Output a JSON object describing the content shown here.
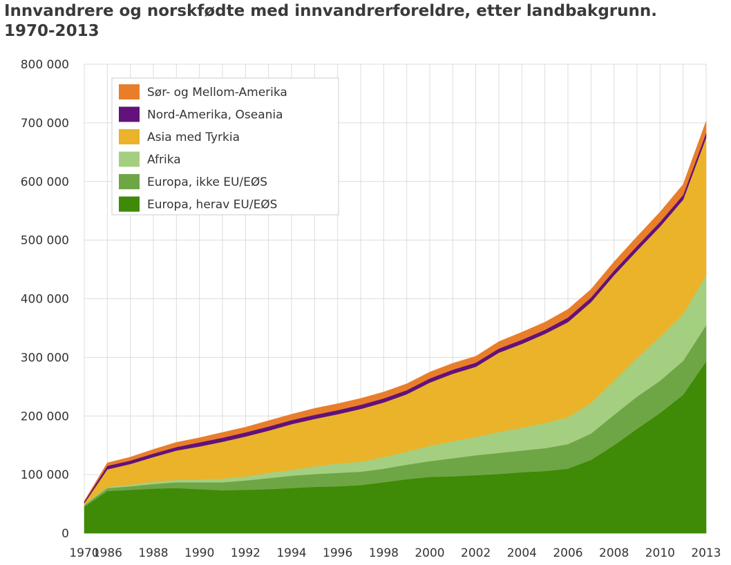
{
  "chart_data": {
    "type": "area",
    "stacked": true,
    "title_line1": "Innvandrere og norskfødte med innvandrerforeldre, etter landbakgrunn.",
    "title_line2": "1970-2013",
    "xlabel": "",
    "ylabel": "",
    "ylim": [
      0,
      800000
    ],
    "yticks": [
      0,
      100000,
      200000,
      300000,
      400000,
      500000,
      600000,
      700000,
      800000
    ],
    "ytick_labels": [
      "0",
      "100 000",
      "200 000",
      "300 000",
      "400 000",
      "500 000",
      "600 000",
      "700 000",
      "800 000"
    ],
    "x": [
      "1970",
      "1986",
      "1987",
      "1988",
      "1989",
      "1990",
      "1991",
      "1992",
      "1993",
      "1994",
      "1995",
      "1996",
      "1997",
      "1998",
      "1999",
      "2000",
      "2001",
      "2002",
      "2003",
      "2004",
      "2005",
      "2006",
      "2007",
      "2008",
      "2009",
      "2010",
      "2011",
      "2013"
    ],
    "xtick_labels": [
      "1970",
      "1986",
      "1988",
      "1990",
      "1992",
      "1994",
      "1996",
      "1998",
      "2000",
      "2002",
      "2004",
      "2006",
      "2008",
      "2010",
      "2013"
    ],
    "grid": true,
    "legend_position": "top-left",
    "series": [
      {
        "name": "Europa, herav EU/EØS",
        "color": "#3f8a06",
        "values": [
          45000,
          72000,
          74000,
          76000,
          77000,
          75000,
          73000,
          74000,
          75000,
          77000,
          79000,
          80000,
          82000,
          87000,
          92000,
          96000,
          97000,
          99000,
          101000,
          104000,
          106000,
          110000,
          125000,
          150000,
          178000,
          205000,
          236000,
          293000
        ]
      },
      {
        "name": "Europa, ikke EU/EØS",
        "color": "#6ea646",
        "values": [
          3000,
          5000,
          6000,
          8000,
          10000,
          12000,
          14000,
          16000,
          19000,
          21000,
          22000,
          23000,
          23000,
          23000,
          25000,
          27000,
          31000,
          34000,
          36000,
          37000,
          39000,
          42000,
          45000,
          52000,
          55000,
          55000,
          58000,
          62000
        ]
      },
      {
        "name": "Afrika",
        "color": "#a5cf80",
        "values": [
          1000,
          2000,
          3000,
          4000,
          4000,
          5000,
          6000,
          7000,
          9000,
          10000,
          13000,
          16000,
          17000,
          20000,
          22000,
          26000,
          29000,
          31000,
          36000,
          39000,
          43000,
          46000,
          52000,
          58000,
          66000,
          75000,
          80000,
          85000
        ]
      },
      {
        "name": "Asia med Tyrkia",
        "color": "#eab32a",
        "values": [
          2000,
          30000,
          35000,
          42000,
          50000,
          56000,
          63000,
          68000,
          72000,
          78000,
          81000,
          84000,
          90000,
          93000,
          98000,
          108000,
          115000,
          120000,
          135000,
          143000,
          152000,
          162000,
          172000,
          180000,
          183000,
          188000,
          195000,
          235000
        ]
      },
      {
        "name": "Nord-Amerika, Oseania",
        "color": "#62127a",
        "values": [
          3000,
          6000,
          6000,
          6000,
          6000,
          7000,
          7000,
          7000,
          7000,
          7000,
          7000,
          7000,
          7000,
          7000,
          7000,
          7000,
          7000,
          7000,
          7000,
          7000,
          7000,
          8000,
          8000,
          8000,
          8000,
          8000,
          8000,
          8000
        ]
      },
      {
        "name": "Sør- og Mellom-Amerika",
        "color": "#e97e2a",
        "values": [
          1000,
          5000,
          6000,
          7000,
          8000,
          8000,
          9000,
          9000,
          10000,
          10000,
          11000,
          11000,
          11000,
          11000,
          11000,
          11000,
          11000,
          11000,
          12000,
          13000,
          13000,
          14000,
          14000,
          15000,
          16000,
          17000,
          18000,
          20000
        ]
      }
    ]
  }
}
